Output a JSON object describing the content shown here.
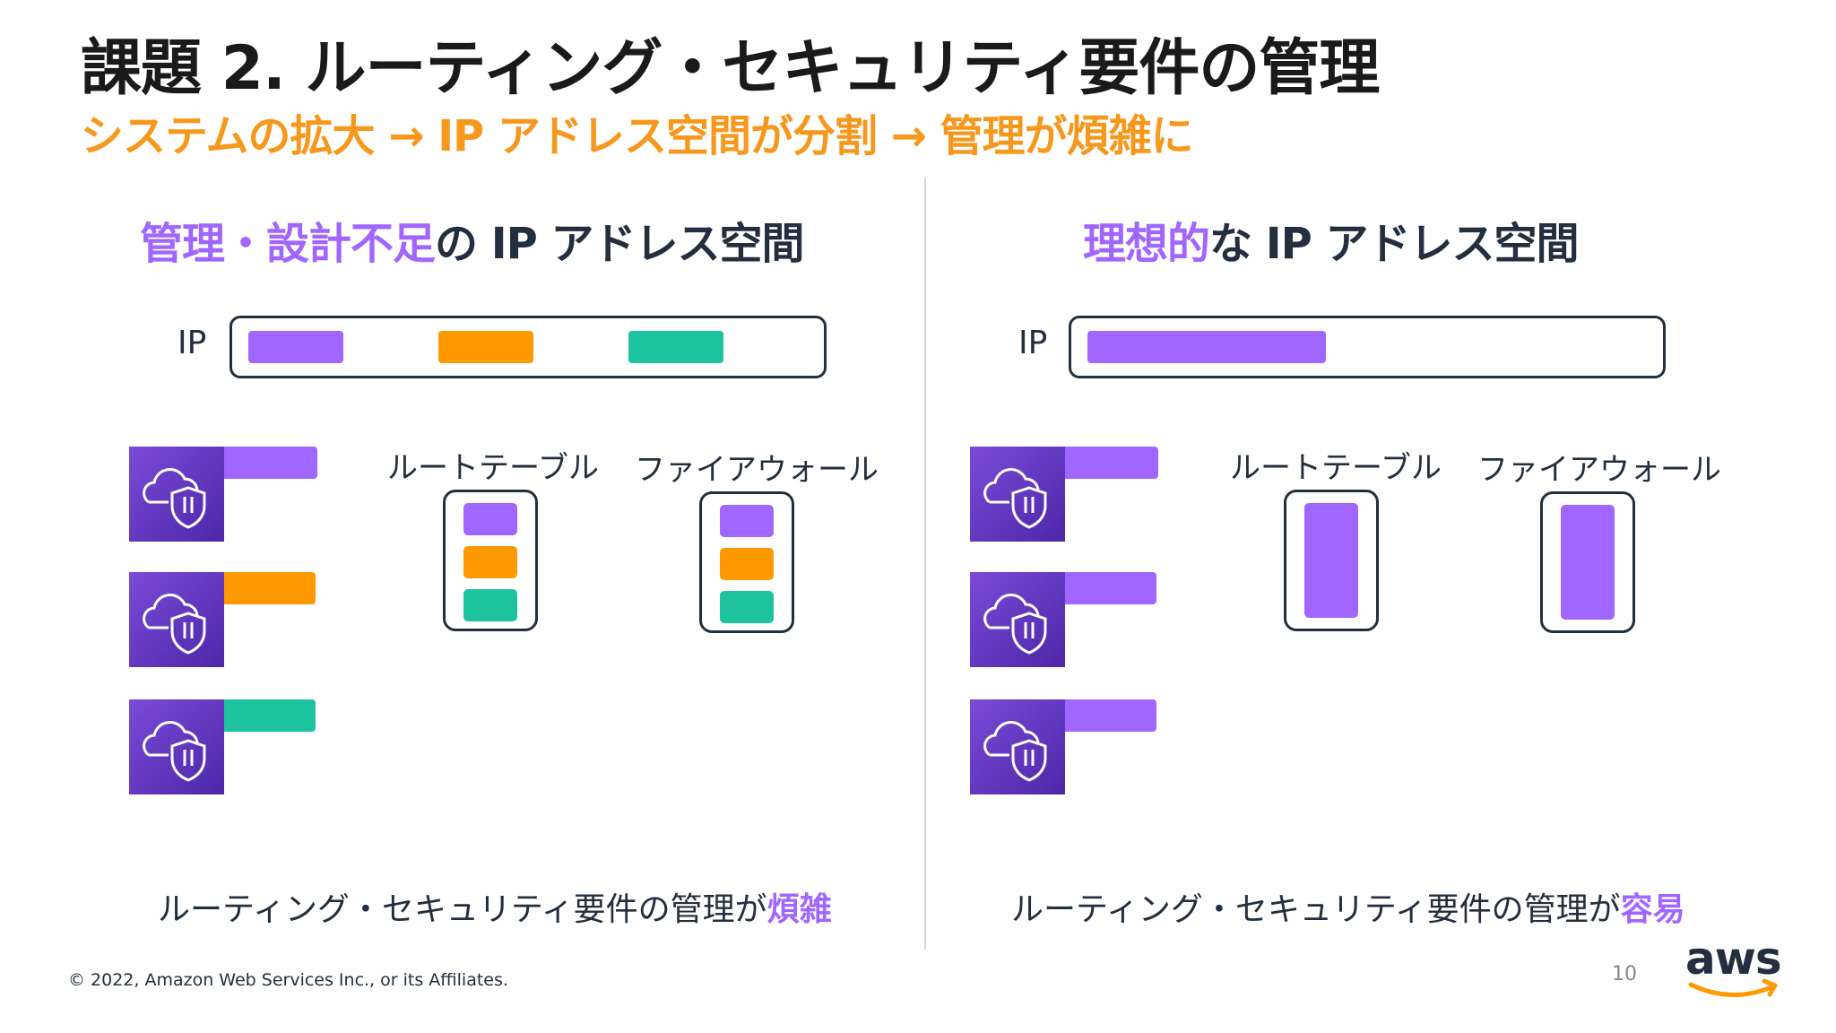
{
  "slide": {
    "title": "課題 2. ルーティング・セキュリティ要件の管理",
    "subtitle": "システムの拡大 → IP アドレス空間が分割 → 管理が煩雑に"
  },
  "left_panel": {
    "heading_accent": "管理・設計不足",
    "heading_rest": "の IP アドレス空間",
    "ip_label": "IP",
    "route_table_label": "ルートテーブル",
    "firewall_label": "ファイアウォール",
    "bottom_text": "ルーティング・セキュリティ要件の管理が",
    "bottom_accent": "煩雑"
  },
  "right_panel": {
    "heading_accent": "理想的",
    "heading_rest": "な IP アドレス空間",
    "ip_label": "IP",
    "route_table_label": "ルートテーブル",
    "firewall_label": "ファイアウォール",
    "bottom_text": "ルーティング・セキュリティ要件の管理が",
    "bottom_accent": "容易"
  },
  "icons": {
    "vpc_tile": "cloud-shield-icon"
  },
  "colors": {
    "purple": "#a166ff",
    "orange": "#ff9900",
    "teal": "#1dc39d",
    "subtitle_orange": "#f7981d",
    "tile": "#5a30b5"
  },
  "footer": {
    "copyright": "© 2022, Amazon Web Services Inc., or its Affiliates.",
    "page_number": "10",
    "logo_text": "aws"
  }
}
